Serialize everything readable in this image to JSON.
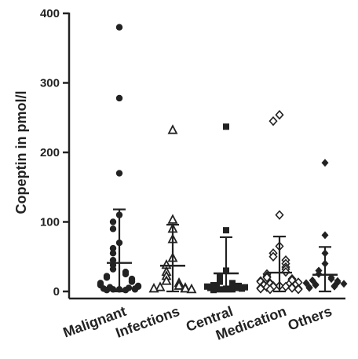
{
  "chart_data": {
    "type": "scatter",
    "title": "",
    "xlabel": "",
    "ylabel": "Copeptin in pmol/l",
    "ylim": [
      0,
      400
    ],
    "yticks": [
      0,
      100,
      200,
      300,
      400
    ],
    "grid": false,
    "legend": "none",
    "color": "#222222",
    "categories": [
      "Malignant",
      "Infections",
      "Central",
      "Medication",
      "Others"
    ],
    "series": [
      {
        "category": "Malignant",
        "marker": "filled-circle",
        "mean": 41,
        "sd_low": 0,
        "sd_high": 118,
        "values": [
          380,
          278,
          170,
          110,
          100,
          90,
          70,
          62,
          55,
          45,
          38,
          32,
          28,
          25,
          22,
          20,
          18,
          16,
          14,
          12,
          10,
          9,
          8,
          7,
          6,
          5,
          5,
          4,
          4,
          3,
          3,
          3,
          2,
          2
        ]
      },
      {
        "category": "Infections",
        "marker": "open-triangle",
        "mean": 37,
        "sd_low": 0,
        "sd_high": 96,
        "values": [
          232,
          103,
          90,
          75,
          48,
          38,
          28,
          22,
          15,
          12,
          8,
          6,
          5,
          4,
          4,
          3
        ]
      },
      {
        "category": "Central",
        "marker": "filled-square",
        "mean": 26,
        "sd_low": 0,
        "sd_high": 78,
        "values": [
          237,
          88,
          30,
          22,
          14,
          12,
          10,
          9,
          8,
          7,
          6,
          6,
          5,
          5,
          4,
          4,
          3,
          3,
          3,
          2
        ]
      },
      {
        "category": "Medication",
        "marker": "open-diamond",
        "mean": 27,
        "sd_low": 0,
        "sd_high": 79,
        "values": [
          254,
          245,
          110,
          65,
          55,
          50,
          45,
          40,
          35,
          32,
          28,
          25,
          22,
          20,
          18,
          16,
          15,
          14,
          13,
          12,
          11,
          10,
          10,
          9,
          9,
          8,
          8,
          7,
          7,
          6,
          6,
          5,
          5,
          4,
          4,
          3,
          3
        ]
      },
      {
        "category": "Others",
        "marker": "filled-diamond",
        "mean": 24,
        "sd_low": 0,
        "sd_high": 64,
        "values": [
          185,
          81,
          55,
          40,
          30,
          25,
          20,
          18,
          16,
          15,
          13,
          12,
          11,
          10,
          9,
          8,
          7,
          6,
          5
        ]
      }
    ]
  }
}
